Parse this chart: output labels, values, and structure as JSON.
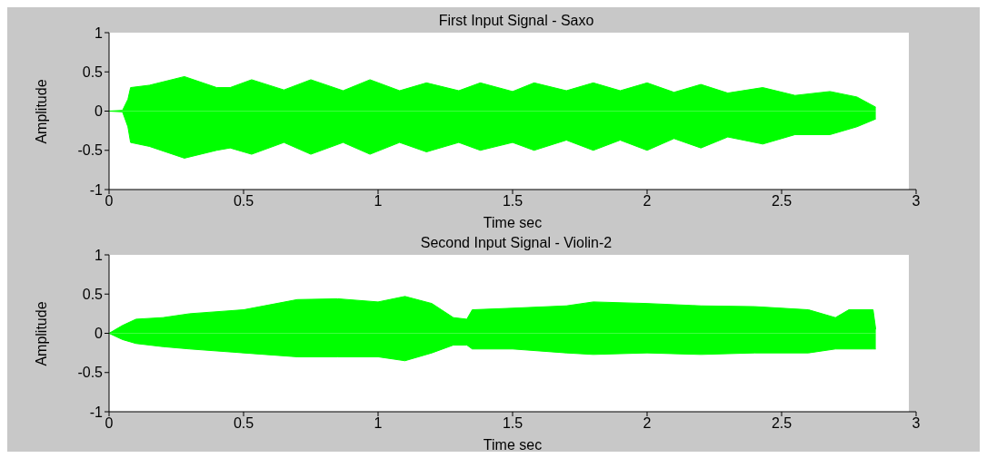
{
  "chart_data": [
    {
      "type": "area",
      "title": "First Input Signal - Saxo",
      "xlabel": "Time sec",
      "ylabel": "Amplitude",
      "xlim": [
        0,
        3
      ],
      "xticks": [
        0,
        0.5,
        1,
        1.5,
        2,
        2.5,
        3
      ],
      "ylim": [
        -1,
        1
      ],
      "yticks": [
        -1,
        -0.5,
        0,
        0.5,
        1
      ],
      "x": [
        0,
        0.05,
        0.07,
        0.08,
        0.15,
        0.28,
        0.4,
        0.45,
        0.53,
        0.65,
        0.75,
        0.87,
        0.97,
        1.08,
        1.18,
        1.3,
        1.38,
        1.5,
        1.58,
        1.7,
        1.8,
        1.9,
        2.0,
        2.1,
        2.2,
        2.3,
        2.43,
        2.55,
        2.68,
        2.78,
        2.85
      ],
      "series": [
        {
          "color": "#00ff00",
          "values": [
            0,
            0.01,
            0.15,
            0.3,
            0.33,
            0.44,
            0.3,
            0.3,
            0.4,
            0.27,
            0.4,
            0.26,
            0.4,
            0.26,
            0.36,
            0.26,
            0.36,
            0.25,
            0.36,
            0.26,
            0.36,
            0.26,
            0.36,
            0.24,
            0.34,
            0.23,
            0.3,
            0.2,
            0.25,
            0.18,
            0.05
          ]
        },
        {
          "color": "#00ff00",
          "values": [
            0,
            -0.01,
            -0.2,
            -0.4,
            -0.45,
            -0.6,
            -0.5,
            -0.47,
            -0.55,
            -0.4,
            -0.55,
            -0.4,
            -0.55,
            -0.4,
            -0.52,
            -0.4,
            -0.5,
            -0.4,
            -0.5,
            -0.37,
            -0.5,
            -0.37,
            -0.5,
            -0.35,
            -0.47,
            -0.33,
            -0.42,
            -0.3,
            -0.3,
            -0.2,
            -0.1
          ]
        }
      ]
    },
    {
      "type": "area",
      "title": "Second Input Signal - Violin-2",
      "xlabel": "Time sec",
      "ylabel": "Amplitude",
      "xlim": [
        0,
        3
      ],
      "xticks": [
        0,
        0.5,
        1,
        1.5,
        2,
        2.5,
        3
      ],
      "ylim": [
        -1,
        1
      ],
      "yticks": [
        -1,
        -0.5,
        0,
        0.5,
        1
      ],
      "x": [
        0,
        0.05,
        0.1,
        0.2,
        0.3,
        0.5,
        0.7,
        0.85,
        1.0,
        1.1,
        1.2,
        1.28,
        1.33,
        1.35,
        1.5,
        1.7,
        1.8,
        2.0,
        2.2,
        2.4,
        2.6,
        2.7,
        2.75,
        2.84,
        2.85
      ],
      "series": [
        {
          "color": "#00ff00",
          "values": [
            0,
            0.1,
            0.18,
            0.2,
            0.25,
            0.3,
            0.43,
            0.44,
            0.4,
            0.47,
            0.38,
            0.2,
            0.18,
            0.3,
            0.32,
            0.35,
            0.4,
            0.38,
            0.35,
            0.34,
            0.3,
            0.2,
            0.3,
            0.3,
            0.05
          ]
        },
        {
          "color": "#00ff00",
          "values": [
            0,
            -0.08,
            -0.13,
            -0.17,
            -0.2,
            -0.25,
            -0.3,
            -0.3,
            -0.3,
            -0.35,
            -0.25,
            -0.15,
            -0.15,
            -0.2,
            -0.2,
            -0.25,
            -0.27,
            -0.25,
            -0.27,
            -0.25,
            -0.25,
            -0.2,
            -0.2,
            -0.2,
            -0.2
          ]
        }
      ]
    }
  ]
}
